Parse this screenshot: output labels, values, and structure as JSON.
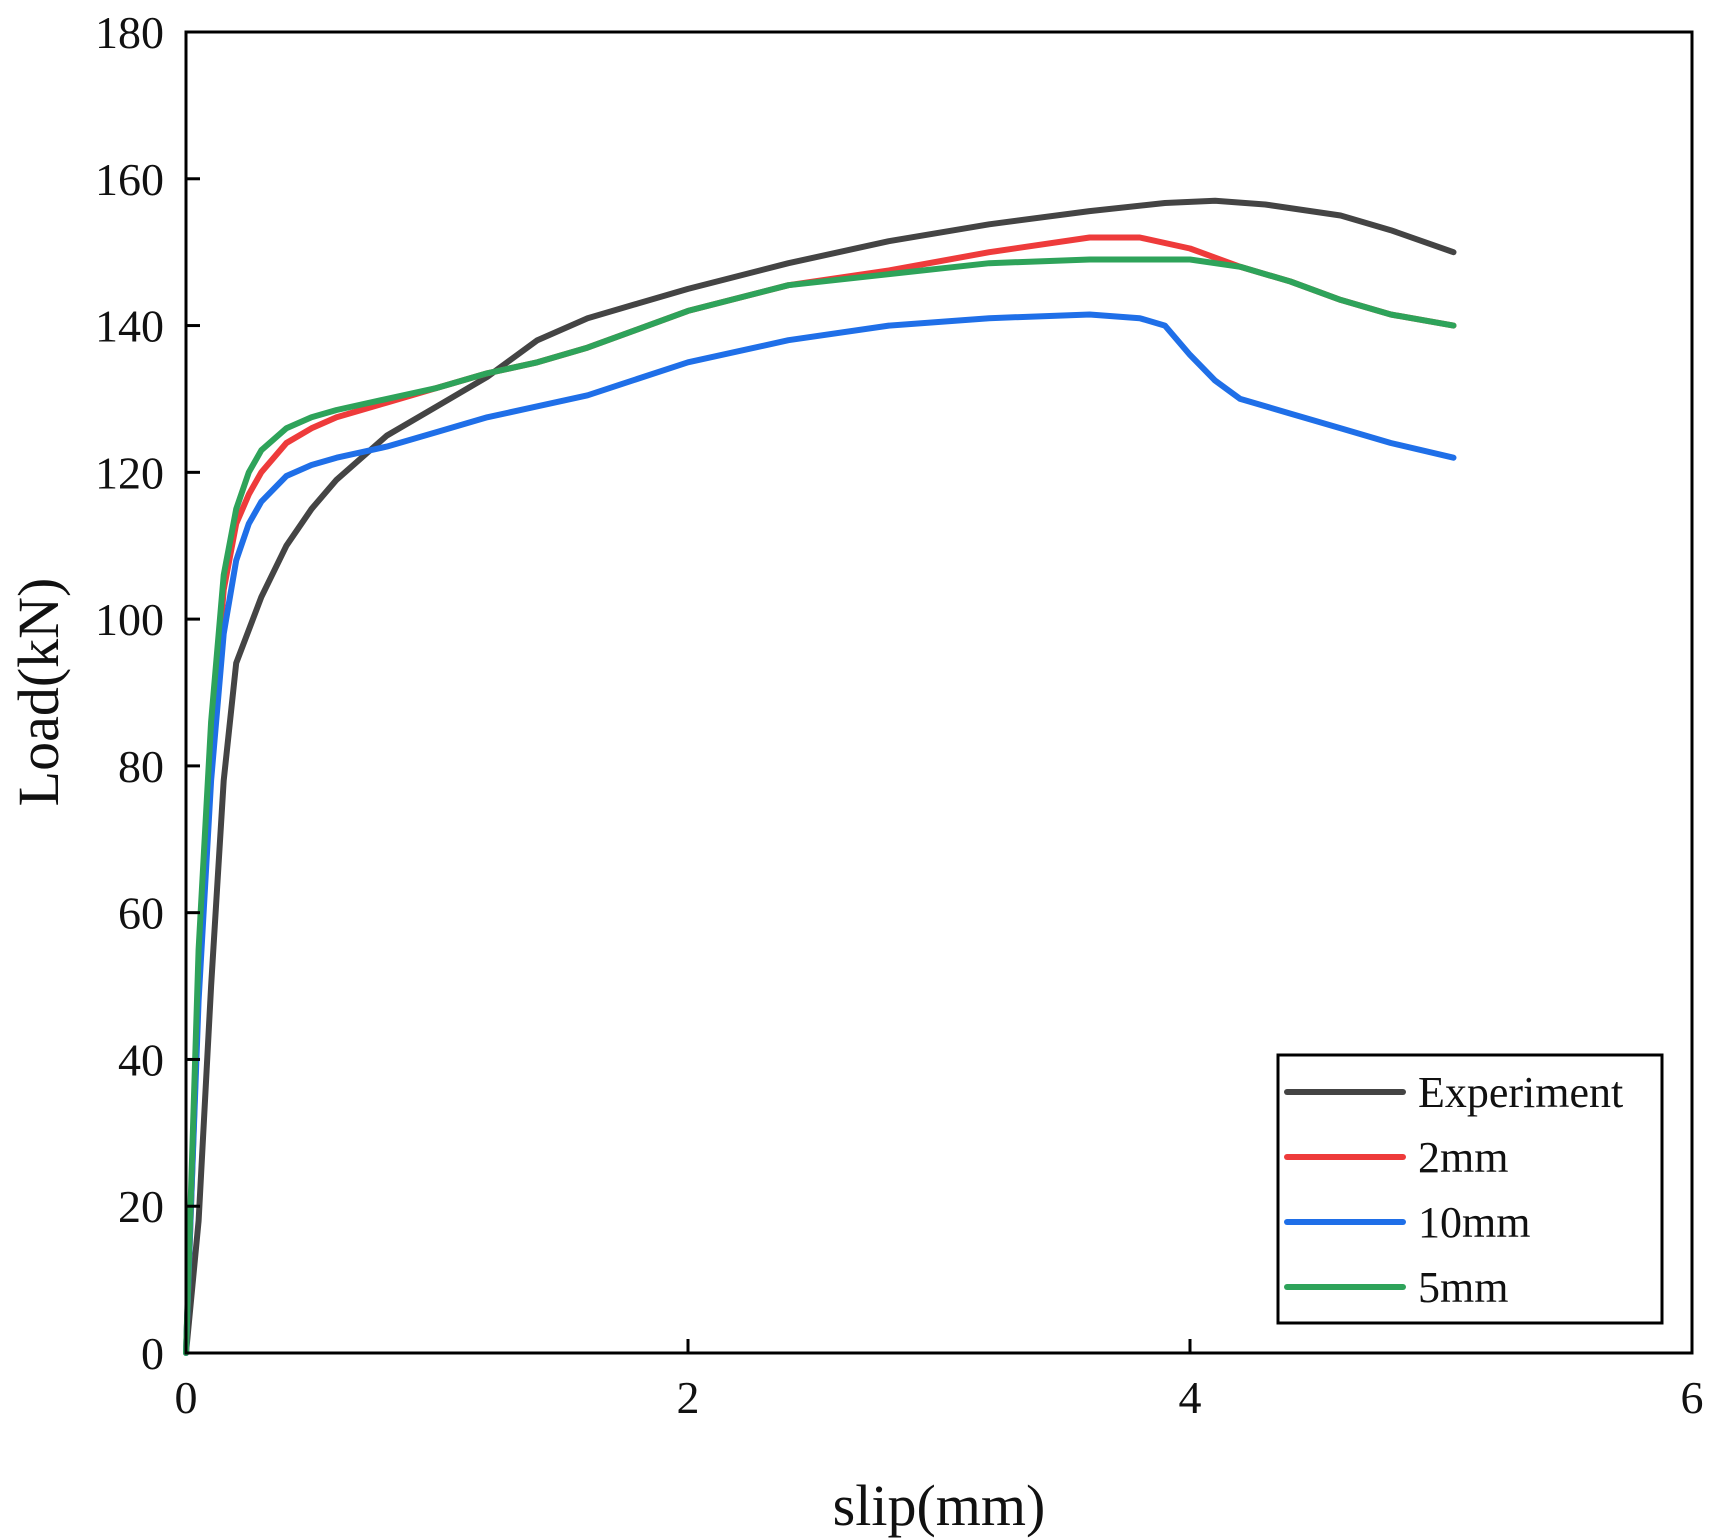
{
  "chart_data": {
    "type": "line",
    "title": "",
    "xlabel": "slip(mm)",
    "ylabel": "Load(kN)",
    "xlim": [
      0,
      6
    ],
    "ylim": [
      0,
      180
    ],
    "xticks": [
      0,
      2,
      4,
      6
    ],
    "xtick_labels": [
      "0",
      "2",
      "4",
      "6"
    ],
    "yticks": [
      0,
      20,
      40,
      60,
      80,
      100,
      120,
      140,
      160,
      180
    ],
    "ytick_labels": [
      "0",
      "20",
      "40",
      "60",
      "80",
      "100",
      "120",
      "140",
      "160",
      "180"
    ],
    "grid": false,
    "legend_position": "bottom-right",
    "series": [
      {
        "name": "Experiment",
        "color": "#444444",
        "x": [
          0,
          0.05,
          0.1,
          0.15,
          0.2,
          0.3,
          0.4,
          0.5,
          0.6,
          0.8,
          1.0,
          1.2,
          1.4,
          1.6,
          1.8,
          2.0,
          2.4,
          2.8,
          3.2,
          3.6,
          3.9,
          4.1,
          4.3,
          4.6,
          4.8,
          5.05
        ],
        "y": [
          0,
          18,
          50,
          78,
          94,
          103,
          110,
          115,
          119,
          125,
          129,
          133,
          138,
          141,
          143,
          145,
          148.5,
          151.5,
          153.8,
          155.6,
          156.7,
          157,
          156.5,
          155,
          153,
          150
        ]
      },
      {
        "name": "2mm",
        "color": "#ee3b3b",
        "x": [
          0,
          0.02,
          0.05,
          0.1,
          0.15,
          0.2,
          0.25,
          0.3,
          0.4,
          0.5,
          0.6,
          0.8,
          1.0,
          1.2,
          1.4,
          1.6,
          2.0,
          2.4,
          2.8,
          3.2,
          3.6,
          3.8,
          4.0,
          4.2,
          4.4,
          4.6,
          4.8,
          5.05
        ],
        "y": [
          0,
          20,
          50,
          82,
          104,
          113,
          117,
          120,
          124,
          126,
          127.5,
          129.5,
          131.5,
          133.5,
          135,
          137,
          142,
          145.5,
          147.5,
          150,
          152,
          152,
          150.5,
          148,
          146,
          143.5,
          141.5,
          140
        ]
      },
      {
        "name": "10mm",
        "color": "#1f6fe8",
        "x": [
          0,
          0.02,
          0.05,
          0.1,
          0.15,
          0.2,
          0.25,
          0.3,
          0.4,
          0.5,
          0.6,
          0.8,
          1.0,
          1.2,
          1.4,
          1.6,
          2.0,
          2.4,
          2.8,
          3.2,
          3.6,
          3.8,
          3.9,
          4.0,
          4.1,
          4.2,
          4.4,
          4.6,
          4.8,
          5.05
        ],
        "y": [
          0,
          20,
          48,
          78,
          98,
          108,
          113,
          116,
          119.5,
          121,
          122,
          123.5,
          125.5,
          127.5,
          129,
          130.5,
          135,
          138,
          140,
          141,
          141.5,
          141,
          140,
          136,
          132.5,
          130,
          128,
          126,
          124,
          122
        ]
      },
      {
        "name": "5mm",
        "color": "#2ea35a",
        "x": [
          0,
          0.02,
          0.05,
          0.1,
          0.15,
          0.2,
          0.25,
          0.3,
          0.4,
          0.5,
          0.6,
          0.8,
          1.0,
          1.2,
          1.4,
          1.6,
          2.0,
          2.4,
          2.8,
          3.2,
          3.6,
          3.8,
          4.0,
          4.2,
          4.4,
          4.6,
          4.8,
          5.05
        ],
        "y": [
          0,
          22,
          55,
          86,
          106,
          115,
          120,
          123,
          126,
          127.5,
          128.5,
          130,
          131.5,
          133.5,
          135,
          137,
          142,
          145.5,
          147,
          148.5,
          149,
          149,
          149,
          148,
          146,
          143.5,
          141.5,
          140
        ]
      }
    ]
  }
}
